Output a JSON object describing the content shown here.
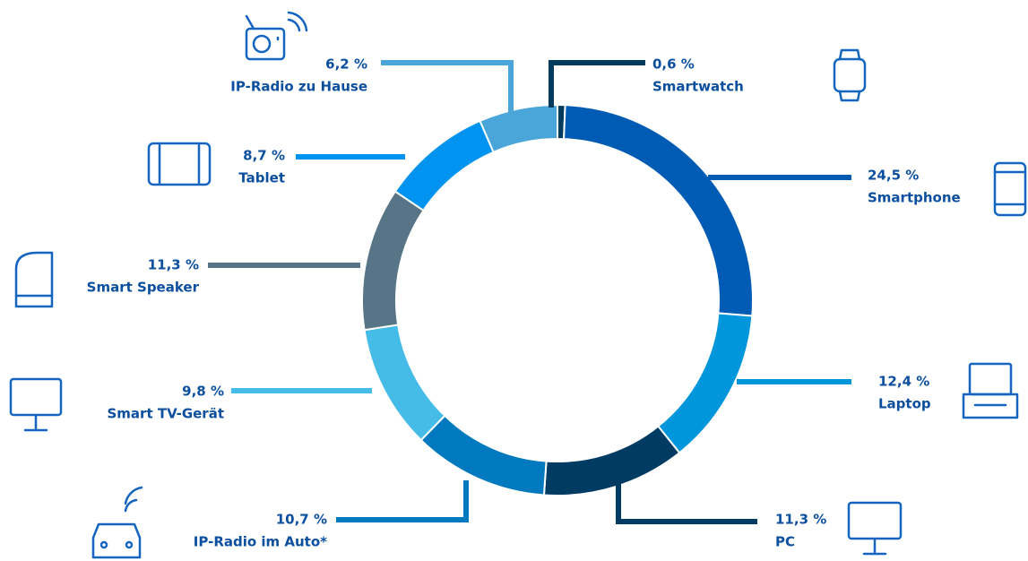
{
  "chart_data": {
    "type": "donut",
    "categories": [
      "Smartwatch",
      "Smartphone",
      "Laptop",
      "PC",
      "IP-Radio im Auto*",
      "Smart TV-Gerät",
      "Smart Speaker",
      "Tablet",
      "IP-Radio zu Hause"
    ],
    "values": [
      0.6,
      24.5,
      12.4,
      11.3,
      10.7,
      9.8,
      11.3,
      8.7,
      6.2
    ],
    "value_labels": [
      "0,6 %",
      "24,5 %",
      "12,4 %",
      "11,3 %",
      "10,7 %",
      "9,8 %",
      "11,3 %",
      "8,7 %",
      "6,2 %"
    ],
    "colors": [
      "#003a5c",
      "#005bb5",
      "#0096dc",
      "#003b64",
      "#0079bf",
      "#45bce8",
      "#587587",
      "#0093ef",
      "#4aa6d9"
    ]
  }
}
